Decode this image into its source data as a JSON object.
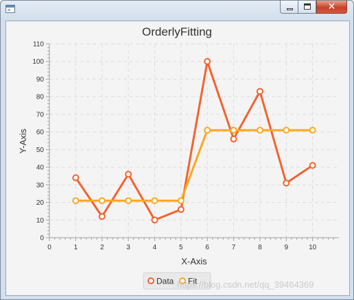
{
  "window": {
    "controls": {
      "minimize_icon": "minimize-icon",
      "maximize_icon": "maximize-icon",
      "close_icon": "close-icon"
    }
  },
  "watermark": "https://blog.csdn.net/qq_39464369",
  "chart_data": {
    "type": "line",
    "title": "OrderlyFitting",
    "xlabel": "X-Axis",
    "ylabel": "Y-Axis",
    "xlim": [
      0,
      11
    ],
    "ylim": [
      0,
      110
    ],
    "x_ticks": [
      0,
      1,
      2,
      3,
      4,
      5,
      6,
      7,
      8,
      9,
      10
    ],
    "y_ticks": [
      0,
      10,
      20,
      30,
      40,
      50,
      60,
      70,
      80,
      90,
      100,
      110
    ],
    "grid": true,
    "legend": "bottom-center",
    "series": [
      {
        "name": "Data",
        "color": "#f3622d",
        "x": [
          1,
          2,
          3,
          4,
          5,
          6,
          7,
          8,
          9,
          10
        ],
        "y": [
          34,
          12,
          36,
          10,
          16,
          100,
          56,
          83,
          31,
          41
        ]
      },
      {
        "name": "Fit",
        "color": "#fba71b",
        "x": [
          1,
          2,
          3,
          4,
          5,
          6,
          7,
          8,
          9,
          10
        ],
        "y": [
          21,
          21,
          21,
          21,
          21,
          61,
          61,
          61,
          61,
          61
        ]
      }
    ]
  }
}
